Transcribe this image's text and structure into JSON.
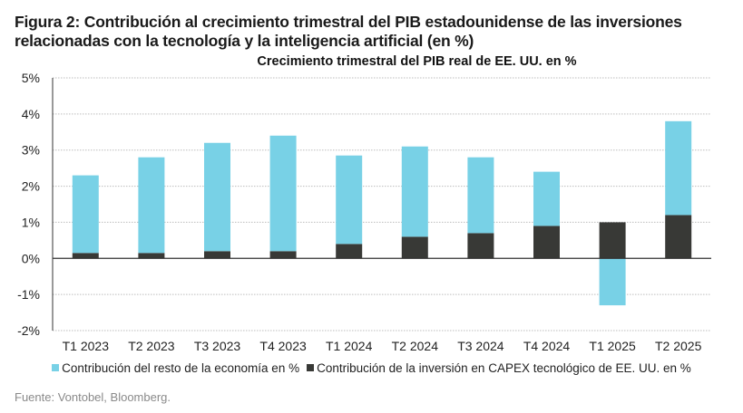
{
  "figure_title": "Figura 2: Contribución al crecimiento trimestral del PIB estadounidense de las inversiones relacionadas con la tecnología y la inteligencia artificial (en %)",
  "source": "Fuente: Vontobel, Bloomberg.",
  "chart_data": {
    "type": "bar",
    "stacked": true,
    "title": "Crecimiento trimestral del PIB real de EE. UU. en %",
    "xlabel": "",
    "ylabel": "",
    "categories": [
      "T1 2023",
      "T2 2023",
      "T3 2023",
      "T4 2023",
      "T1 2024",
      "T2 2024",
      "T3 2024",
      "T4 2024",
      "T1 2025",
      "T2 2025"
    ],
    "series": [
      {
        "name": "Contribución de la inversión en CAPEX tecnológico de EE. UU. en %",
        "color": "#383936",
        "values": [
          0.15,
          0.15,
          0.2,
          0.2,
          0.4,
          0.6,
          0.7,
          0.9,
          1.0,
          1.2
        ]
      },
      {
        "name": "Contribución del resto de la economía en %",
        "color": "#78d1e6",
        "values": [
          2.15,
          2.65,
          3.0,
          3.2,
          2.45,
          2.5,
          2.1,
          1.5,
          -1.3,
          2.6
        ]
      }
    ],
    "ylim": [
      -2,
      5
    ],
    "yticks": [
      -2,
      -1,
      0,
      1,
      2,
      3,
      4,
      5
    ],
    "ytick_labels": [
      "-2%",
      "-1%",
      "0%",
      "1%",
      "2%",
      "3%",
      "4%",
      "5%"
    ],
    "grid": true,
    "legend_order": [
      1,
      0
    ],
    "legend_position": "bottom"
  }
}
